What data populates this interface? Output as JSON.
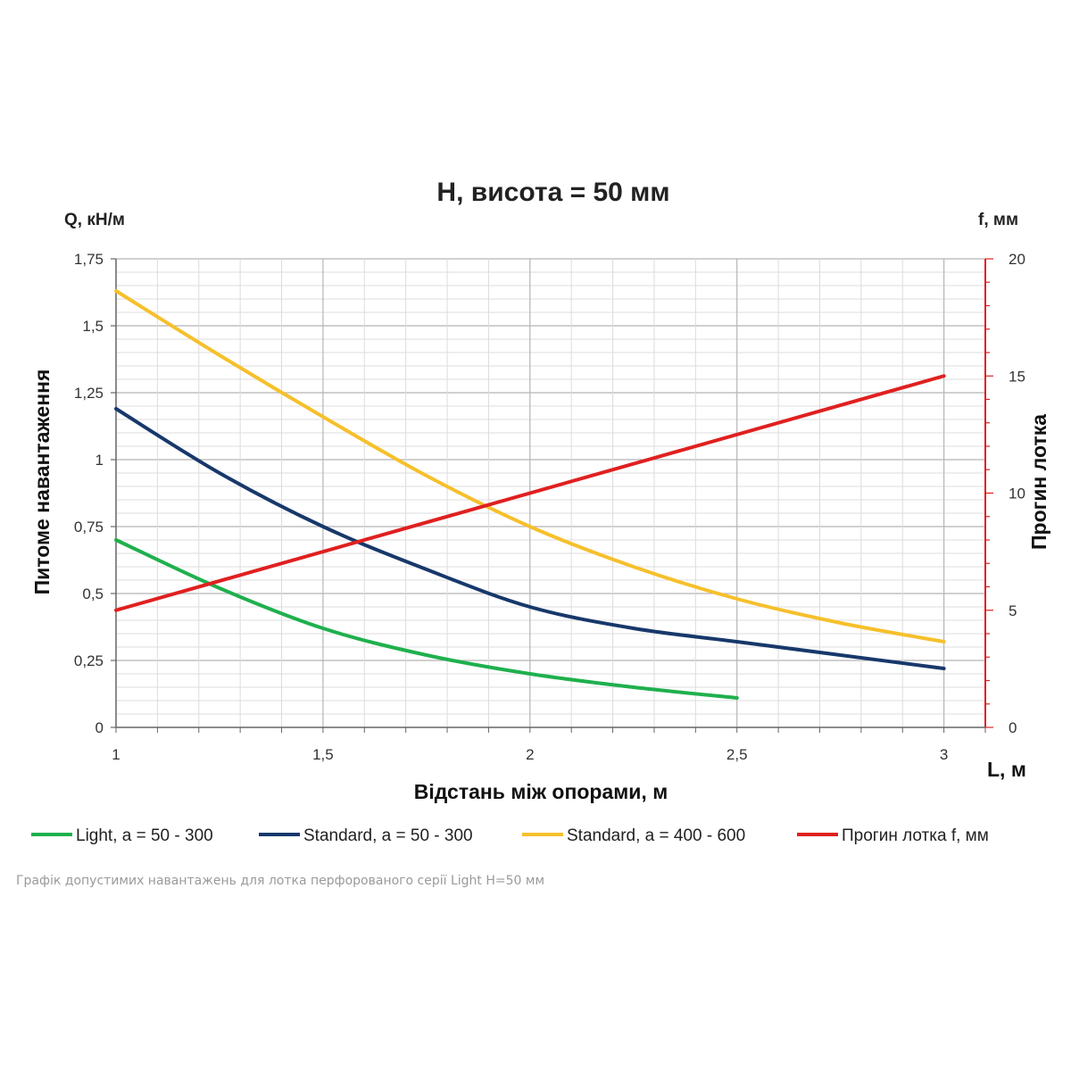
{
  "chart_data": {
    "type": "line",
    "title": "Н, висота = 50 мм",
    "caption": "Графік допустимих навантажень для лотка перфорованого серії Light H=50 мм",
    "xlabel": "Відстань між опорами, м",
    "x_unit_label": "L, м",
    "ylabel_left": "Питоме навантаження",
    "y_unit_left": "Q, кН/м",
    "ylabel_right": "Прогин лотка",
    "y_unit_right": "f, мм",
    "xlim": [
      1,
      3.1
    ],
    "ylim_left": [
      0,
      1.75
    ],
    "ylim_right": [
      0,
      20
    ],
    "x_ticks": [
      "1",
      "1,5",
      "2",
      "2,5",
      "3"
    ],
    "y_ticks_left": [
      "0",
      "0,25",
      "0,5",
      "0,75",
      "1",
      "1,25",
      "1,5",
      "1,75"
    ],
    "y_ticks_right": [
      "0",
      "5",
      "10",
      "15",
      "20"
    ],
    "grid": true,
    "legend_position": "bottom",
    "series": [
      {
        "name": "Light,  a = 50 - 300",
        "color": "#1fb04d",
        "axis": "left",
        "x": [
          1,
          1.25,
          1.5,
          1.75,
          2,
          2.25,
          2.5
        ],
        "values": [
          0.7,
          0.52,
          0.37,
          0.27,
          0.2,
          0.15,
          0.11
        ]
      },
      {
        "name": "Standard,  a = 50 - 300",
        "color": "#17386b",
        "axis": "left",
        "x": [
          1,
          1.25,
          1.5,
          1.75,
          2,
          2.25,
          2.5,
          2.75,
          3
        ],
        "values": [
          1.19,
          0.95,
          0.75,
          0.59,
          0.45,
          0.37,
          0.32,
          0.27,
          0.22
        ]
      },
      {
        "name": "Standard,  a = 400 - 600",
        "color": "#f6c02c",
        "axis": "left",
        "x": [
          1,
          1.25,
          1.5,
          1.75,
          2,
          2.25,
          2.5,
          2.75,
          3
        ],
        "values": [
          1.63,
          1.39,
          1.16,
          0.94,
          0.75,
          0.6,
          0.48,
          0.39,
          0.32
        ]
      },
      {
        "name": "Прогин лотка f, мм",
        "color": "#e02020",
        "axis": "right",
        "x": [
          1,
          3
        ],
        "values": [
          5,
          15
        ]
      }
    ]
  }
}
